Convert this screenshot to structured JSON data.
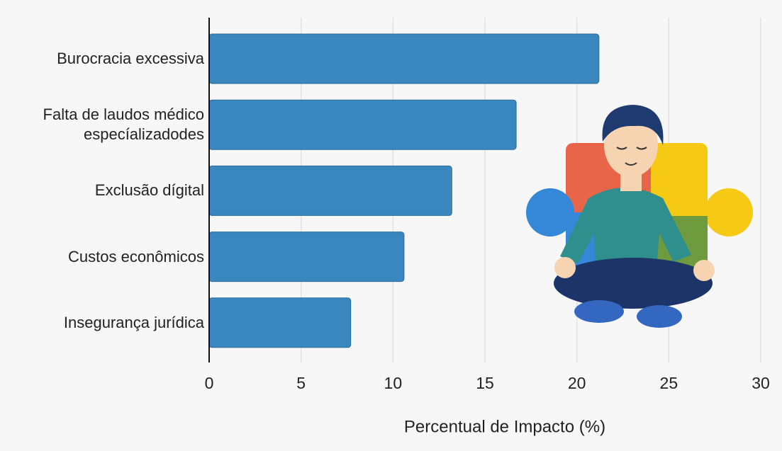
{
  "chart_data": {
    "type": "bar",
    "orientation": "horizontal",
    "categories": [
      "Burocracia excessiva",
      "Falta de laudos médico especíalizadodes",
      "Exclusão dígital",
      "Custos econômicos",
      "Insegurança jurídica"
    ],
    "values": [
      21.2,
      16.7,
      13.2,
      10.6,
      7.7
    ],
    "color": "#3a87bf",
    "xlim": [
      0,
      30
    ],
    "xticks": [
      0,
      5,
      10,
      15,
      20,
      25,
      30
    ],
    "xlabel": "Percentual de Impacto (%)",
    "grid": true
  }
}
